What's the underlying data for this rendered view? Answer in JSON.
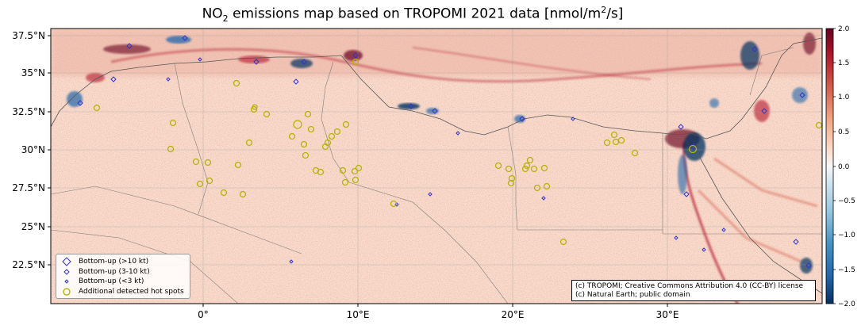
{
  "title": {
    "prefix": "NO",
    "sub": "2",
    "middle": " emissions map based on TROPOMI 2021 data [nmol/m",
    "sup": "2",
    "suffix": "/s]"
  },
  "y_ticks": [
    "37.5°N",
    "35°N",
    "32.5°N",
    "30°N",
    "27.5°N",
    "25°N",
    "22.5°N"
  ],
  "x_ticks": [
    "0°",
    "10°E",
    "20°E",
    "30°E"
  ],
  "colorbar": {
    "ticks": [
      "2.0",
      "1.5",
      "1.0",
      "0.5",
      "0.0",
      "−0.5",
      "−1.0",
      "−1.5",
      "−2.0"
    ],
    "range": [
      -2.0,
      2.0
    ],
    "colors": [
      "#67001f",
      "#b2182b",
      "#d6604d",
      "#f4a582",
      "#fddbc7",
      "#f7f7f7",
      "#d1e5f0",
      "#92c5de",
      "#4393c3",
      "#2166ac",
      "#053061"
    ]
  },
  "legend": {
    "items": [
      {
        "label": "Bottom-up (>10 kt)",
        "color": "#3333cc"
      },
      {
        "label": "Bottom-up (3-10 kt)",
        "color": "#3333cc"
      },
      {
        "label": "Bottom-up (<3 kt)",
        "color": "#3333cc"
      },
      {
        "label": "Additional detected hot spots",
        "color": "#c8c800"
      }
    ]
  },
  "credits": {
    "line1": "(c) TROPOMI; Creative Commons Attribution 4.0 (CC-BY) license",
    "line2": "(c) Natural Earth; public domain"
  },
  "colors": {
    "background": "#f9dccd",
    "hotspot": "#b4b400",
    "source_marker": "#3333cc",
    "grid": "#9a9a9a"
  }
}
